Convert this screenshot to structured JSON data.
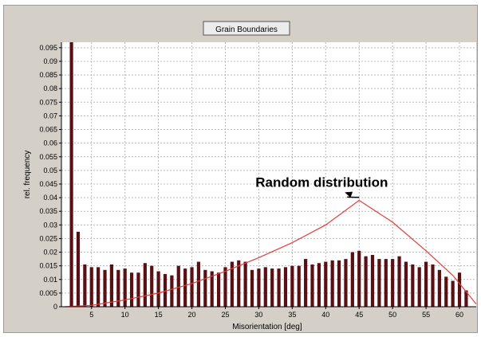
{
  "chart_data": {
    "type": "bar",
    "title": "Grain Boundaries",
    "xlabel": "Misorientation [deg]",
    "ylabel": "rel. frequency",
    "xlim": [
      0.5,
      62.5
    ],
    "ylim": [
      0,
      0.097
    ],
    "x_ticks": [
      5,
      10,
      15,
      20,
      25,
      30,
      35,
      40,
      45,
      50,
      55,
      60
    ],
    "y_ticks": [
      "0",
      "0.005",
      "0.01",
      "0.015",
      "0.02",
      "0.025",
      "0.03",
      "0.035",
      "0.04",
      "0.045",
      "0.05",
      "0.055",
      "0.06",
      "0.065",
      "0.07",
      "0.075",
      "0.08",
      "0.085",
      "0.09",
      "0.095"
    ],
    "grid": true,
    "bar_color": "#5a0f14",
    "line_color": "#e0403a",
    "series": [
      {
        "x": [
          2,
          3,
          4,
          5,
          6,
          7,
          8,
          9,
          10,
          11,
          12,
          13,
          14,
          15,
          16,
          17,
          18,
          19,
          20,
          21,
          22,
          23,
          24,
          25,
          26,
          27,
          28,
          29,
          30,
          31,
          32,
          33,
          34,
          35,
          36,
          37,
          38,
          39,
          40,
          41,
          42,
          43,
          44,
          45,
          46,
          47,
          48,
          49,
          50,
          51,
          52,
          53,
          54,
          55,
          56,
          57,
          58,
          59,
          60,
          61
        ],
        "values": [
          0.097,
          0.0275,
          0.0155,
          0.0145,
          0.0145,
          0.0135,
          0.0155,
          0.0135,
          0.014,
          0.0125,
          0.0125,
          0.016,
          0.015,
          0.013,
          0.012,
          0.0115,
          0.015,
          0.014,
          0.0145,
          0.0165,
          0.0135,
          0.013,
          0.0125,
          0.0145,
          0.0165,
          0.017,
          0.0165,
          0.0135,
          0.014,
          0.0145,
          0.014,
          0.014,
          0.0145,
          0.015,
          0.015,
          0.0175,
          0.0155,
          0.016,
          0.0165,
          0.017,
          0.017,
          0.0175,
          0.02,
          0.0205,
          0.0185,
          0.019,
          0.0175,
          0.0175,
          0.0175,
          0.0185,
          0.0165,
          0.0155,
          0.0145,
          0.0165,
          0.0155,
          0.0135,
          0.011,
          0.0095,
          0.0125,
          0.006
        ]
      },
      {
        "type": "line",
        "x": [
          1,
          5,
          10,
          15,
          20,
          25,
          30,
          35,
          40,
          45,
          50,
          55,
          59,
          61,
          62.5
        ],
        "values": [
          0,
          0.0005,
          0.0025,
          0.005,
          0.0085,
          0.013,
          0.018,
          0.0235,
          0.03,
          0.039,
          0.031,
          0.0205,
          0.0115,
          0.0055,
          0.001
        ]
      }
    ],
    "annotations": [
      {
        "text": "Random distribution",
        "x": 29.5,
        "y": 0.044,
        "arrow_to": [
          45,
          0.0395
        ]
      }
    ]
  }
}
